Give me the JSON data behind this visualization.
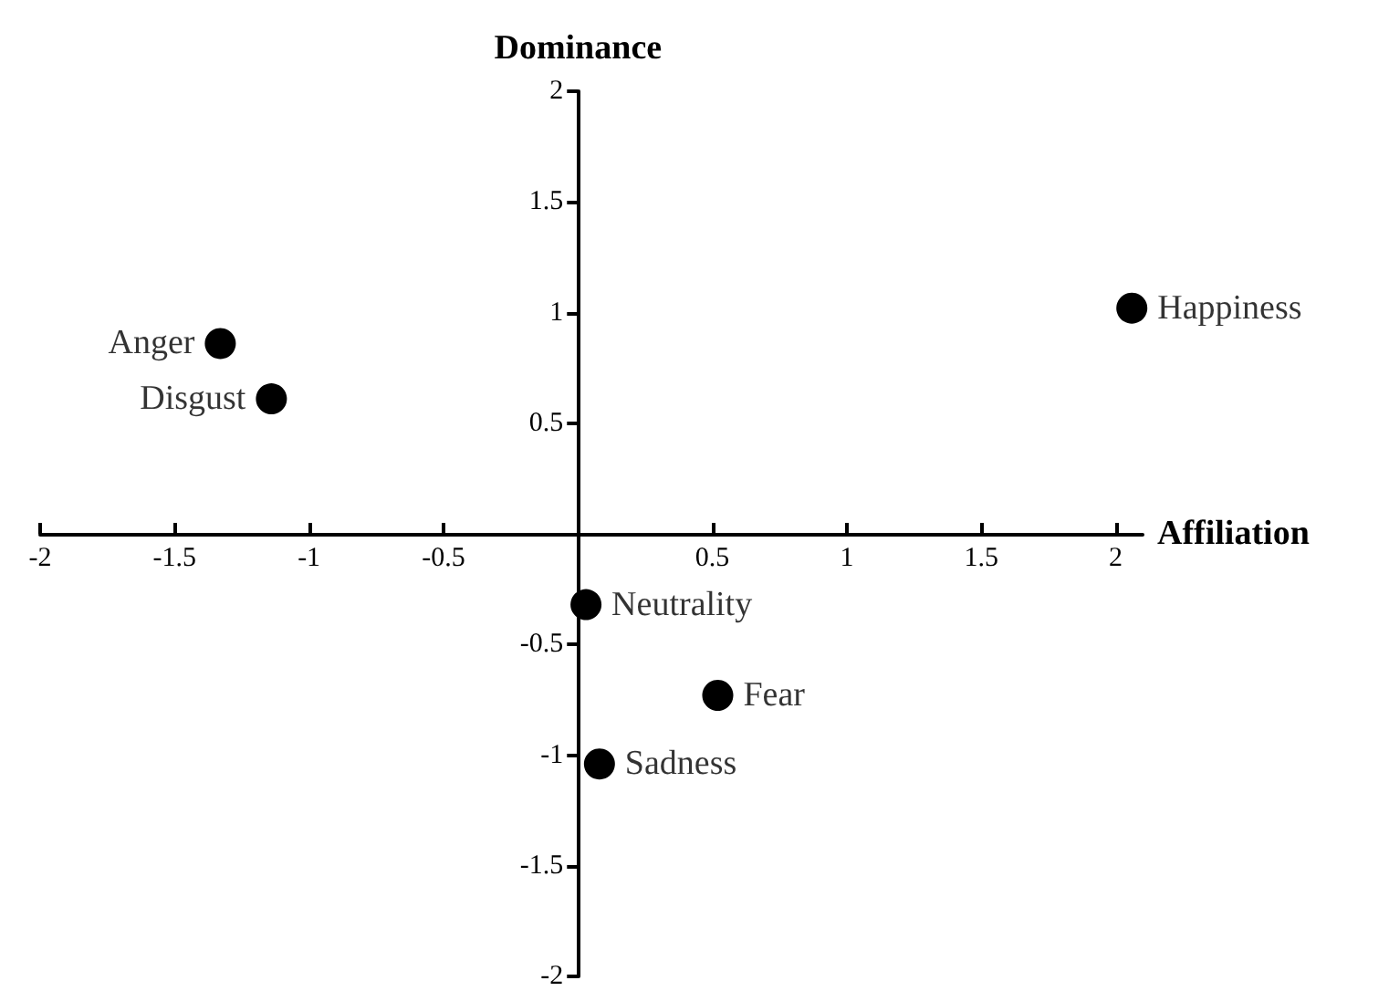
{
  "chart_data": {
    "type": "scatter",
    "xlabel": "Affiliation",
    "ylabel": "Dominance",
    "xlim": [
      -2,
      2.1
    ],
    "ylim": [
      -2,
      2
    ],
    "xticks": [
      -2,
      -1.5,
      -1,
      -0.5,
      0.5,
      1,
      1.5,
      2
    ],
    "yticks": [
      -2,
      -1.5,
      -1,
      -0.5,
      0.5,
      1,
      1.5,
      2
    ],
    "grid": false,
    "marker": "circle",
    "series": [
      {
        "color": "#000000",
        "x": [
          -1.33,
          -1.14,
          2.06,
          0.03,
          0.52,
          0.08
        ],
        "values": [
          0.86,
          0.61,
          1.02,
          -0.32,
          -0.73,
          -1.04
        ]
      }
    ],
    "annotations": [
      {
        "text": "Anger",
        "x": -1.33,
        "y": 0.86
      },
      {
        "text": "Disgust",
        "x": -1.14,
        "y": 0.61
      },
      {
        "text": "Happiness",
        "x": 2.06,
        "y": 1.02
      },
      {
        "text": "Neutrality",
        "x": 0.03,
        "y": -0.32
      },
      {
        "text": "Fear",
        "x": 0.52,
        "y": -0.73
      },
      {
        "text": "Sadness",
        "x": 0.08,
        "y": -1.04
      }
    ]
  }
}
